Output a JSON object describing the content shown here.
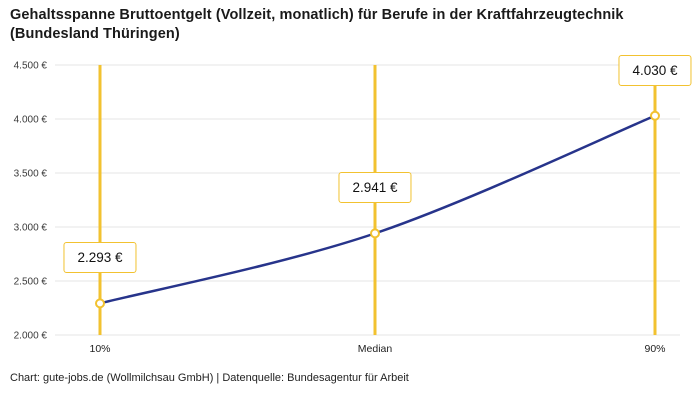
{
  "title": "Gehaltsspanne Bruttoentgelt (Vollzeit, monatlich) für Berufe in der Kraftfahrzeugtechnik (Bundesland Thüringen)",
  "footer": "Chart: gute-jobs.de (Wollmilchsau GmbH) | Datenquelle: Bundesagentur für Arbeit",
  "chart_data": {
    "type": "line",
    "title": "Gehaltsspanne Bruttoentgelt (Vollzeit, monatlich) für Berufe in der Kraftfahrzeugtechnik (Bundesland Thüringen)",
    "categories": [
      "10%",
      "Median",
      "90%"
    ],
    "values": [
      2293,
      2941,
      4030
    ],
    "point_labels": [
      "2.293 €",
      "2.941 €",
      "4.030 €"
    ],
    "ylim": [
      2000,
      4500
    ],
    "yticks": [
      2000,
      2500,
      3000,
      3500,
      4000,
      4500
    ],
    "ytick_labels": [
      "2.000 €",
      "2.500 €",
      "3.000 €",
      "3.500 €",
      "4.000 €",
      "4.500 €"
    ],
    "xlabel": "",
    "ylabel": "",
    "grid": true,
    "legend": false,
    "colors": {
      "line": "#27348b",
      "marker_stroke": "#f2c230",
      "marker_fill": "#ffffff",
      "vertical_line": "#f2c230",
      "label_border": "#f2c230",
      "grid": "#e4e4e4",
      "tick_text": "#3a3a3a",
      "title_text": "#1a1a1a"
    }
  }
}
